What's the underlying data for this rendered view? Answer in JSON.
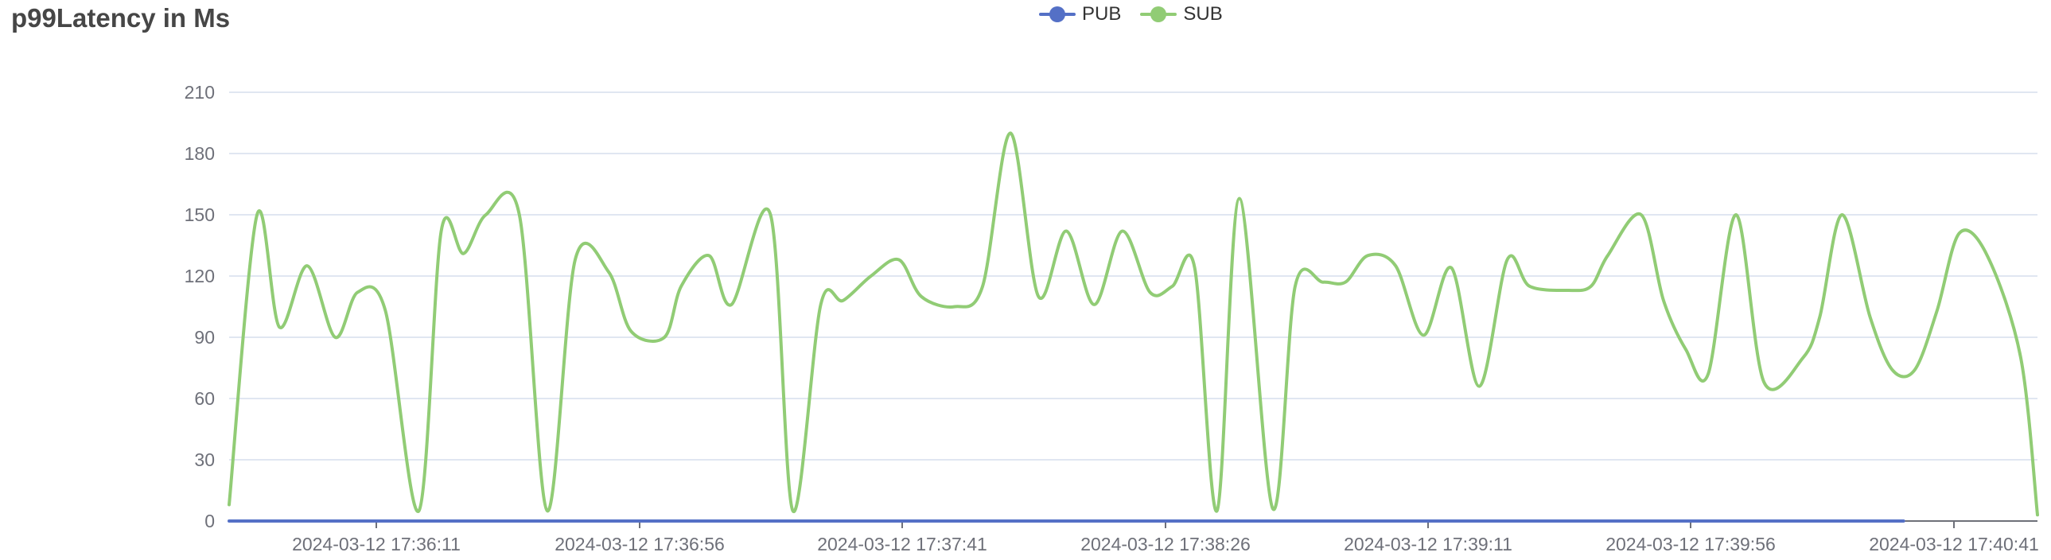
{
  "chart_data": {
    "type": "line",
    "title": "p99Latency in Ms",
    "ylim": [
      0,
      210
    ],
    "yticks": [
      0,
      30,
      60,
      90,
      120,
      150,
      180,
      210
    ],
    "xticks": [
      "2024-03-12 17:36:11",
      "2024-03-12 17:36:56",
      "2024-03-12 17:37:41",
      "2024-03-12 17:38:26",
      "2024-03-12 17:39:11",
      "2024-03-12 17:39:56",
      "2024-03-12 17:40:41"
    ],
    "grid": true,
    "legend_position": "top-center",
    "series": [
      {
        "name": "PUB",
        "color": "#5470c6",
        "points": [
          [
            0,
            0
          ],
          [
            300,
            0
          ]
        ]
      },
      {
        "name": "SUB",
        "color": "#91cc75",
        "points": [
          [
            0,
            8
          ],
          [
            5,
            150
          ],
          [
            9,
            95
          ],
          [
            14,
            125
          ],
          [
            19,
            90
          ],
          [
            23,
            112
          ],
          [
            28,
            103
          ],
          [
            34,
            5
          ],
          [
            38,
            142
          ],
          [
            42,
            131
          ],
          [
            46,
            150
          ],
          [
            52,
            150
          ],
          [
            57,
            5
          ],
          [
            62,
            128
          ],
          [
            68,
            122
          ],
          [
            72,
            93
          ],
          [
            78,
            90
          ],
          [
            81,
            115
          ],
          [
            86,
            130
          ],
          [
            90,
            106
          ],
          [
            97,
            150
          ],
          [
            101,
            5
          ],
          [
            106,
            106
          ],
          [
            110,
            108
          ],
          [
            115,
            120
          ],
          [
            120,
            128
          ],
          [
            124,
            110
          ],
          [
            130,
            105
          ],
          [
            135,
            115
          ],
          [
            140,
            190
          ],
          [
            145,
            110
          ],
          [
            150,
            142
          ],
          [
            155,
            106
          ],
          [
            160,
            142
          ],
          [
            165,
            112
          ],
          [
            169,
            115
          ],
          [
            173,
            124
          ],
          [
            177,
            5
          ],
          [
            181,
            158
          ],
          [
            187,
            6
          ],
          [
            191,
            115
          ],
          [
            196,
            117
          ],
          [
            200,
            117
          ],
          [
            204,
            130
          ],
          [
            209,
            125
          ],
          [
            214,
            91
          ],
          [
            219,
            124
          ],
          [
            224,
            66
          ],
          [
            229,
            128
          ],
          [
            233,
            115
          ],
          [
            240,
            113
          ],
          [
            244,
            115
          ],
          [
            247,
            130
          ],
          [
            253,
            150
          ],
          [
            257,
            108
          ],
          [
            261,
            84
          ],
          [
            265,
            72
          ],
          [
            270,
            150
          ],
          [
            275,
            68
          ],
          [
            282,
            80
          ],
          [
            285,
            100
          ],
          [
            289,
            150
          ],
          [
            294,
            100
          ],
          [
            298,
            74
          ],
          [
            302,
            74
          ],
          [
            306,
            103
          ],
          [
            310,
            141
          ],
          [
            315,
            130
          ],
          [
            321,
            80
          ],
          [
            324,
            3
          ]
        ]
      }
    ]
  }
}
